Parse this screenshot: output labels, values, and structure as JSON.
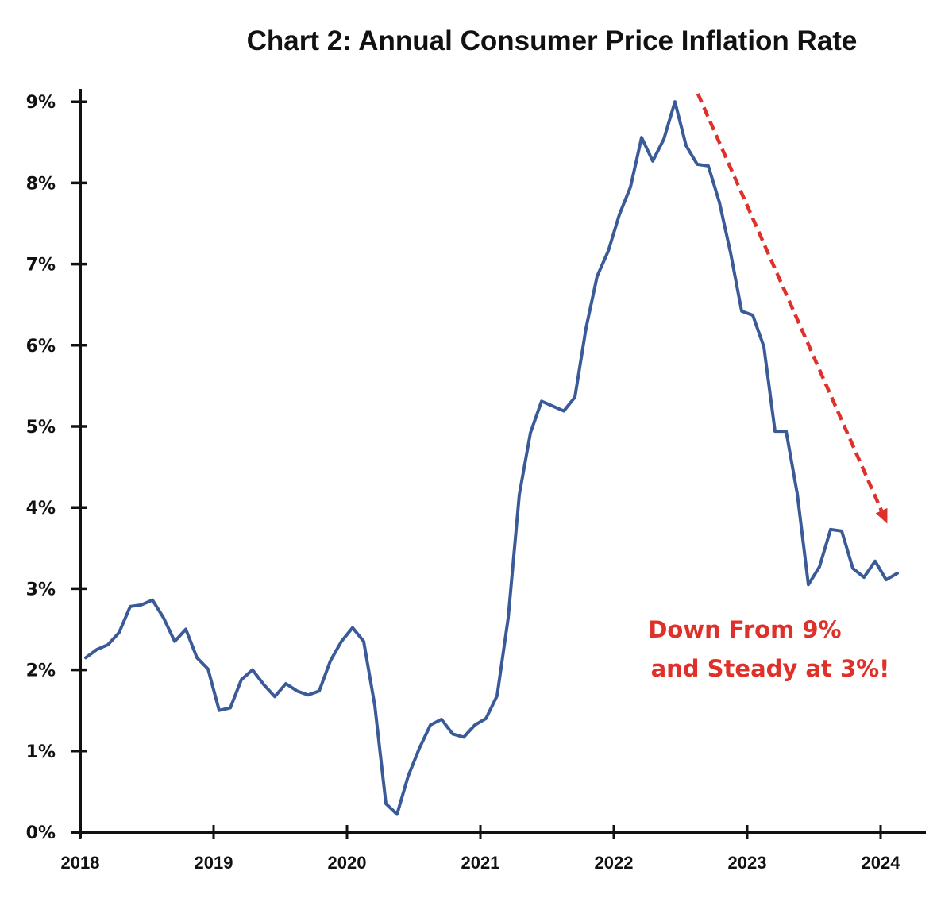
{
  "chart_data": {
    "type": "line",
    "title": "Chart 2: Annual Consumer Price Inflation Rate",
    "xlabel": "",
    "ylabel": "",
    "grid": false,
    "legend": "none",
    "ylim": [
      0,
      9
    ],
    "yticks": [
      0,
      1,
      2,
      3,
      4,
      5,
      6,
      7,
      8,
      9
    ],
    "ytick_labels": [
      "0%",
      "1%",
      "2%",
      "3%",
      "4%",
      "5%",
      "6%",
      "7%",
      "8%",
      "9%"
    ],
    "xlim": [
      2018,
      2024.25
    ],
    "xticks": [
      2018,
      2019,
      2020,
      2021,
      2022,
      2023,
      2024
    ],
    "xtick_labels": [
      "2018",
      "2019",
      "2020",
      "2021",
      "2022",
      "2023",
      "2024"
    ],
    "x_start": "2018-01",
    "x_step": "monthly",
    "series": [
      {
        "name": "Annual CPI inflation rate",
        "color": "#3a5a98",
        "values": [
          2.15,
          2.25,
          2.31,
          2.46,
          2.78,
          2.8,
          2.86,
          2.64,
          2.35,
          2.5,
          2.15,
          2.01,
          1.5,
          1.53,
          1.88,
          2.0,
          1.82,
          1.67,
          1.83,
          1.74,
          1.69,
          1.74,
          2.11,
          2.35,
          2.52,
          2.35,
          1.56,
          0.35,
          0.22,
          0.69,
          1.03,
          1.32,
          1.39,
          1.21,
          1.17,
          1.32,
          1.4,
          1.68,
          2.64,
          4.16,
          4.92,
          5.31,
          5.25,
          5.19,
          5.36,
          6.21,
          6.85,
          7.16,
          7.61,
          7.95,
          8.56,
          8.27,
          8.54,
          9.0,
          8.46,
          8.23,
          8.21,
          7.76,
          7.14,
          6.42,
          6.37,
          5.98,
          4.94,
          4.94,
          4.17,
          3.05,
          3.27,
          3.73,
          3.71,
          3.25,
          3.14,
          3.34,
          3.11,
          3.19
        ]
      }
    ],
    "annotations": [
      {
        "type": "arrow",
        "style": "dashed",
        "color": "#e0302a",
        "from": {
          "x": 2022.63,
          "y": 9.1
        },
        "to": {
          "x": 2024.05,
          "y": 3.8
        }
      },
      {
        "type": "text",
        "color": "#e0302a",
        "lines": [
          "Down From 9%",
          "and Steady at 3%!"
        ]
      }
    ]
  }
}
